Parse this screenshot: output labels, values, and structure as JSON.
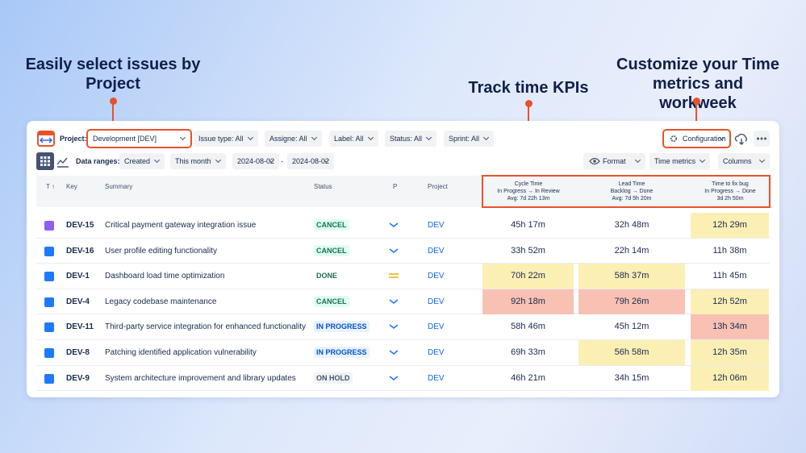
{
  "callouts": {
    "project": "Easily select issues by Project",
    "kpis": "Track time KPIs",
    "config": "Customize your Time metrics and workweek"
  },
  "toolbar": {
    "project_label": "Project:",
    "project": "Development [DEV]",
    "filters": [
      "Issue type: All",
      "Assigne: All",
      "Label: All",
      "Status: All",
      "Sprint: All"
    ],
    "configuration": "Configuration",
    "data_ranges_label": "Data ranges:",
    "range_field": "Created",
    "range_period": "This month",
    "date_from": "2024-08-02",
    "date_separator": "-",
    "date_to": "2024-08-02",
    "format": "Format",
    "time_metrics": "Time metrics",
    "columns": "Columns"
  },
  "table": {
    "headers": [
      "T ↑",
      "Key",
      "Summary",
      "Status",
      "P",
      "Project"
    ],
    "metrics": [
      {
        "name": "Cycle Time",
        "range": "In Progress → In Review",
        "avg": "Avg: 7d 22h 13m"
      },
      {
        "name": "Lead Time",
        "range": "Backlog → Done",
        "avg": "Avg: 7d 5h 20m"
      },
      {
        "name": "Time to fix bug",
        "range": "In Progress → Done",
        "avg": "3d 2h 50m"
      }
    ],
    "rows": [
      {
        "key": "DEV-15",
        "summary": "Critical payment gateway integration issue",
        "status": "CANCEL",
        "project": "DEV",
        "metrics": [
          "45h 17m",
          "32h 48m",
          "12h 29m"
        ]
      },
      {
        "key": "DEV-16",
        "summary": "User profile editing functionality",
        "status": "CANCEL",
        "project": "DEV",
        "metrics": [
          "33h 52m",
          "22h 14m",
          "11h 38m"
        ]
      },
      {
        "key": "DEV-1",
        "summary": "Dashboard load time optimization",
        "status": "DONE",
        "project": "DEV",
        "metrics": [
          "70h 22m",
          "58h 37m",
          "11h 45m"
        ]
      },
      {
        "key": "DEV-4",
        "summary": "Legacy codebase maintenance",
        "status": "CANCEL",
        "project": "DEV",
        "metrics": [
          "92h 18m",
          "79h 26m",
          "12h 52m"
        ]
      },
      {
        "key": "DEV-11",
        "summary": "Third-party service integration for enhanced functionality",
        "status": "IN PROGRESS",
        "project": "DEV",
        "metrics": [
          "58h 46m",
          "45h 12m",
          "13h 34m"
        ]
      },
      {
        "key": "DEV-8",
        "summary": "Patching identified application vulnerability",
        "status": "IN PROGRESS",
        "project": "DEV",
        "metrics": [
          "69h 33m",
          "56h 58m",
          "12h 35m"
        ]
      },
      {
        "key": "DEV-9",
        "summary": "System architecture improvement and library updates",
        "status": "ON HOLD",
        "project": "DEV",
        "metrics": [
          "46h 21m",
          "34h 15m",
          "12h 06m"
        ]
      }
    ]
  }
}
